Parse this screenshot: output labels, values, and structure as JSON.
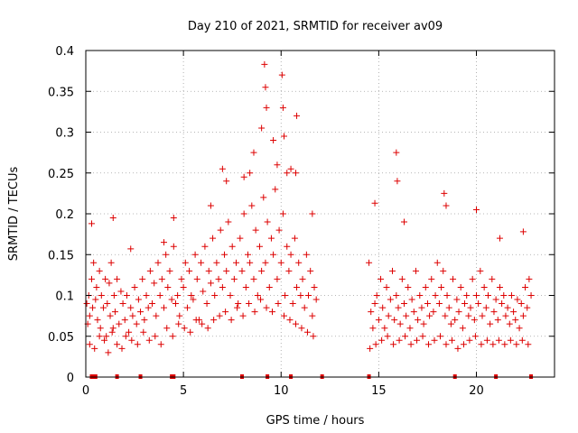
{
  "chart_data": {
    "type": "scatter",
    "title": "Day 210 of 2021, SRMTID for receiver av09",
    "xlabel": "GPS time / hours",
    "ylabel": "SRMTID / TECUs",
    "xlim": [
      0,
      24
    ],
    "ylim": [
      0,
      0.4
    ],
    "x_ticks": [
      0,
      5,
      10,
      15,
      20
    ],
    "y_ticks": [
      0,
      0.05,
      0.1,
      0.15,
      0.2,
      0.25,
      0.3,
      0.35,
      0.4
    ],
    "x_tick_labels": [
      "0",
      "5",
      "10",
      "15",
      "20"
    ],
    "y_tick_labels": [
      "0",
      "0.05",
      "0.1",
      "0.15",
      "0.2",
      "0.25",
      "0.3",
      "0.35",
      "0.4"
    ],
    "grid": true,
    "marker": "+",
    "marker_color": "#dd0000",
    "series": [
      {
        "name": "SRMTID",
        "x": [
          0.05,
          0.1,
          0.15,
          0.2,
          0.3,
          0.35,
          0.4,
          0.5,
          0.55,
          0.6,
          0.7,
          0.75,
          0.8,
          0.9,
          1.0,
          1.05,
          1.1,
          1.2,
          1.25,
          1.3,
          1.4,
          1.45,
          1.5,
          1.6,
          1.7,
          1.8,
          1.9,
          2.0,
          2.1,
          2.2,
          2.3,
          2.4,
          2.5,
          2.6,
          2.7,
          2.8,
          2.9,
          3.0,
          3.1,
          3.2,
          3.3,
          3.4,
          3.5,
          3.6,
          3.7,
          3.8,
          3.9,
          4.0,
          4.1,
          4.2,
          4.3,
          4.4,
          4.5,
          4.6,
          4.7,
          4.8,
          4.9,
          5.0,
          5.1,
          5.2,
          5.3,
          5.4,
          5.5,
          5.6,
          5.7,
          5.8,
          5.9,
          6.0,
          6.1,
          6.2,
          6.3,
          6.4,
          6.5,
          6.6,
          6.7,
          6.8,
          6.9,
          7.0,
          7.1,
          7.2,
          7.3,
          7.4,
          7.5,
          7.6,
          7.7,
          7.8,
          7.9,
          8.0,
          8.1,
          8.2,
          8.3,
          8.4,
          8.5,
          8.6,
          8.7,
          8.8,
          8.9,
          9.0,
          9.1,
          9.2,
          9.3,
          9.4,
          9.5,
          9.6,
          9.7,
          9.8,
          9.9,
          10.0,
          10.1,
          10.2,
          10.3,
          10.4,
          10.5,
          10.6,
          10.7,
          10.8,
          10.9,
          11.0,
          11.1,
          11.2,
          11.3,
          11.4,
          11.5,
          11.6,
          11.7,
          11.8,
          14.5,
          14.6,
          14.7,
          14.8,
          14.9,
          15.0,
          15.1,
          15.2,
          15.3,
          15.4,
          15.5,
          15.6,
          15.7,
          15.8,
          15.9,
          16.0,
          16.1,
          16.2,
          16.3,
          16.4,
          16.5,
          16.6,
          16.7,
          16.8,
          16.9,
          17.0,
          17.1,
          17.2,
          17.3,
          17.4,
          17.5,
          17.6,
          17.7,
          17.8,
          17.9,
          18.0,
          18.1,
          18.2,
          18.3,
          18.4,
          18.5,
          18.6,
          18.7,
          18.8,
          18.9,
          19.0,
          19.1,
          19.2,
          19.3,
          19.4,
          19.5,
          19.6,
          19.7,
          19.8,
          19.9,
          20.0,
          20.1,
          20.2,
          20.3,
          20.4,
          20.5,
          20.6,
          20.7,
          20.8,
          20.9,
          21.0,
          21.1,
          21.2,
          21.3,
          21.4,
          21.5,
          21.6,
          21.7,
          21.8,
          21.9,
          22.0,
          22.1,
          22.2,
          22.3,
          22.4,
          22.5,
          22.6,
          22.7,
          22.8,
          0.2,
          0.45,
          0.7,
          0.95,
          1.15,
          1.35,
          1.6,
          1.85,
          2.05,
          2.35,
          2.65,
          2.95,
          3.25,
          3.55,
          3.85,
          4.15,
          4.45,
          4.75,
          5.05,
          5.35,
          5.65,
          5.95,
          6.25,
          6.55,
          6.85,
          7.15,
          7.45,
          7.75,
          8.05,
          8.35,
          8.65,
          8.95,
          9.25,
          9.55,
          9.85,
          10.15,
          10.45,
          10.75,
          11.05,
          11.35,
          11.65,
          14.55,
          14.85,
          15.15,
          15.45,
          15.75,
          16.05,
          16.35,
          16.65,
          16.95,
          17.25,
          17.55,
          17.85,
          18.15,
          18.45,
          18.75,
          19.05,
          19.35,
          19.65,
          19.95,
          20.25,
          20.55,
          20.85,
          21.15,
          21.45,
          21.75,
          22.05,
          22.35,
          22.65,
          0.3,
          1.4,
          2.3,
          4.0,
          4.5,
          6.4,
          7.0,
          7.2,
          8.1,
          8.4,
          8.6,
          9.0,
          9.15,
          9.2,
          9.25,
          9.6,
          9.8,
          10.05,
          10.1,
          10.15,
          10.3,
          10.5,
          10.75,
          10.8,
          11.6,
          14.8,
          15.9,
          15.95,
          16.3,
          18.35,
          18.45,
          20.0,
          21.2,
          22.4
        ],
        "y": [
          0.09,
          0.065,
          0.1,
          0.075,
          0.12,
          0.085,
          0.14,
          0.095,
          0.11,
          0.07,
          0.13,
          0.06,
          0.1,
          0.085,
          0.12,
          0.05,
          0.09,
          0.115,
          0.075,
          0.14,
          0.06,
          0.1,
          0.08,
          0.12,
          0.065,
          0.105,
          0.09,
          0.07,
          0.1,
          0.055,
          0.085,
          0.075,
          0.11,
          0.065,
          0.095,
          0.08,
          0.12,
          0.07,
          0.1,
          0.085,
          0.13,
          0.09,
          0.115,
          0.075,
          0.14,
          0.1,
          0.12,
          0.085,
          0.15,
          0.11,
          0.13,
          0.095,
          0.16,
          0.09,
          0.1,
          0.075,
          0.12,
          0.11,
          0.14,
          0.085,
          0.13,
          0.1,
          0.095,
          0.15,
          0.12,
          0.07,
          0.14,
          0.105,
          0.16,
          0.09,
          0.13,
          0.115,
          0.17,
          0.1,
          0.14,
          0.12,
          0.18,
          0.11,
          0.15,
          0.13,
          0.19,
          0.1,
          0.16,
          0.12,
          0.14,
          0.09,
          0.17,
          0.13,
          0.2,
          0.11,
          0.15,
          0.14,
          0.21,
          0.12,
          0.18,
          0.1,
          0.16,
          0.13,
          0.22,
          0.14,
          0.19,
          0.11,
          0.17,
          0.15,
          0.23,
          0.12,
          0.18,
          0.14,
          0.2,
          0.1,
          0.16,
          0.13,
          0.15,
          0.09,
          0.17,
          0.11,
          0.14,
          0.1,
          0.12,
          0.085,
          0.15,
          0.1,
          0.13,
          0.075,
          0.11,
          0.095,
          0.14,
          0.08,
          0.06,
          0.09,
          0.1,
          0.07,
          0.12,
          0.085,
          0.06,
          0.11,
          0.075,
          0.095,
          0.13,
          0.07,
          0.1,
          0.085,
          0.065,
          0.12,
          0.09,
          0.075,
          0.11,
          0.06,
          0.095,
          0.08,
          0.13,
          0.07,
          0.1,
          0.085,
          0.065,
          0.11,
          0.09,
          0.075,
          0.12,
          0.08,
          0.1,
          0.14,
          0.09,
          0.11,
          0.13,
          0.075,
          0.1,
          0.085,
          0.065,
          0.12,
          0.07,
          0.095,
          0.08,
          0.11,
          0.06,
          0.09,
          0.1,
          0.075,
          0.085,
          0.12,
          0.07,
          0.1,
          0.09,
          0.13,
          0.075,
          0.11,
          0.085,
          0.1,
          0.065,
          0.12,
          0.08,
          0.095,
          0.07,
          0.11,
          0.09,
          0.1,
          0.075,
          0.085,
          0.065,
          0.1,
          0.08,
          0.07,
          0.095,
          0.06,
          0.09,
          0.075,
          0.11,
          0.085,
          0.12,
          0.1,
          0.04,
          0.035,
          0.05,
          0.045,
          0.03,
          0.055,
          0.04,
          0.035,
          0.05,
          0.045,
          0.04,
          0.055,
          0.045,
          0.05,
          0.04,
          0.06,
          0.05,
          0.065,
          0.06,
          0.055,
          0.07,
          0.065,
          0.06,
          0.07,
          0.075,
          0.08,
          0.07,
          0.085,
          0.075,
          0.09,
          0.08,
          0.095,
          0.085,
          0.08,
          0.09,
          0.075,
          0.07,
          0.065,
          0.06,
          0.055,
          0.05,
          0.035,
          0.04,
          0.045,
          0.05,
          0.04,
          0.045,
          0.05,
          0.04,
          0.045,
          0.05,
          0.04,
          0.045,
          0.05,
          0.04,
          0.045,
          0.035,
          0.04,
          0.045,
          0.05,
          0.04,
          0.045,
          0.04,
          0.045,
          0.04,
          0.045,
          0.04,
          0.045,
          0.04,
          0.188,
          0.195,
          0.157,
          0.165,
          0.195,
          0.21,
          0.255,
          0.24,
          0.245,
          0.25,
          0.275,
          0.305,
          0.383,
          0.355,
          0.33,
          0.29,
          0.26,
          0.37,
          0.33,
          0.295,
          0.25,
          0.255,
          0.25,
          0.32,
          0.2,
          0.213,
          0.275,
          0.24,
          0.19,
          0.225,
          0.21,
          0.205,
          0.17,
          0.178
        ]
      }
    ],
    "rug_x": [
      0.3,
      0.4,
      0.5,
      1.6,
      2.8,
      4.4,
      4.5,
      8.0,
      9.3,
      10.5,
      12.1,
      14.5,
      18.9,
      21.0,
      22.8
    ]
  }
}
